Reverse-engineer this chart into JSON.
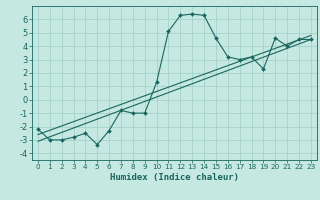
{
  "xlabel": "Humidex (Indice chaleur)",
  "background_color": "#c5e8e0",
  "grid_color": "#9ecfc5",
  "line_color": "#1a6660",
  "xlim": [
    -0.5,
    23.5
  ],
  "ylim": [
    -4.5,
    7.0
  ],
  "xticks": [
    0,
    1,
    2,
    3,
    4,
    5,
    6,
    7,
    8,
    9,
    10,
    11,
    12,
    13,
    14,
    15,
    16,
    17,
    18,
    19,
    20,
    21,
    22,
    23
  ],
  "yticks": [
    -4,
    -3,
    -2,
    -1,
    0,
    1,
    2,
    3,
    4,
    5,
    6
  ],
  "main_x": [
    0,
    1,
    2,
    3,
    4,
    5,
    6,
    7,
    8,
    9,
    10,
    11,
    12,
    13,
    14,
    15,
    16,
    17,
    18,
    19,
    20,
    21,
    22,
    23
  ],
  "main_y": [
    -2.2,
    -3.0,
    -3.0,
    -2.8,
    -2.5,
    -3.35,
    -2.3,
    -0.8,
    -1.0,
    -1.0,
    1.3,
    5.1,
    6.3,
    6.4,
    6.3,
    4.6,
    3.2,
    3.0,
    3.2,
    2.3,
    4.6,
    4.0,
    4.5,
    4.5
  ],
  "line1_x": [
    0,
    23
  ],
  "line1_y": [
    -3.1,
    4.5
  ],
  "line2_x": [
    0,
    23
  ],
  "line2_y": [
    -2.6,
    4.8
  ]
}
